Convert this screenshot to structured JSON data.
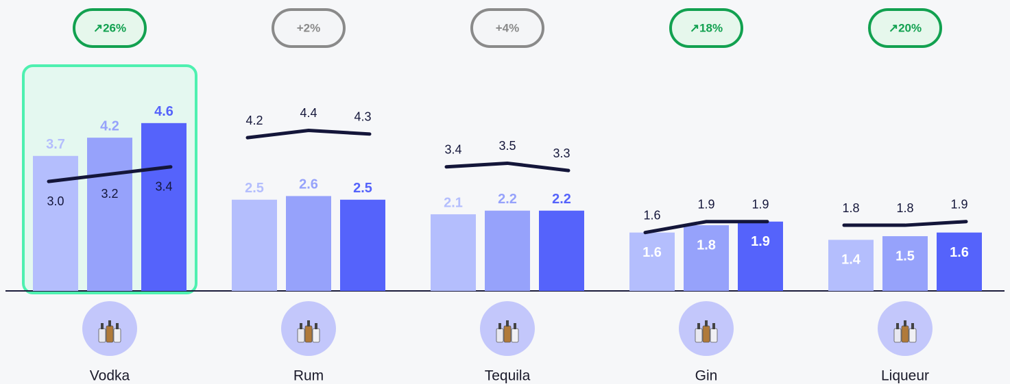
{
  "chart_data": {
    "type": "bar",
    "categories": [
      "Vodka",
      "Rum",
      "Tequila",
      "Gin",
      "Liqueur"
    ],
    "series": [
      {
        "color": "#b4befd",
        "values": [
          3.7,
          2.5,
          2.1,
          1.6,
          1.4
        ]
      },
      {
        "color": "#96a2fb",
        "values": [
          4.2,
          2.6,
          2.2,
          1.8,
          1.5
        ]
      },
      {
        "color": "#5563fb",
        "values": [
          4.6,
          2.5,
          2.2,
          1.9,
          1.6
        ]
      }
    ],
    "line_color": "#14163a",
    "line_series": [
      {
        "values": [
          3.0,
          4.2,
          3.4,
          1.6,
          1.8
        ],
        "value_labels": [
          "3.0",
          "4.2",
          "3.4",
          "1.6",
          "1.8"
        ]
      },
      {
        "values": [
          3.2,
          4.4,
          3.5,
          1.9,
          1.8
        ],
        "value_labels": [
          "3.2",
          "4.4",
          "3.5",
          "1.9",
          "1.8"
        ]
      },
      {
        "values": [
          3.4,
          4.3,
          3.3,
          1.9,
          1.9
        ],
        "value_labels": [
          "3.4",
          "4.3",
          "3.3",
          "1.9",
          "1.9"
        ]
      }
    ],
    "badges": [
      "↗26%",
      "+2%",
      "+4%",
      "↗18%",
      "↗20%"
    ],
    "badge_colors": [
      "#12a150",
      "#8a8a8a",
      "#8a8a8a",
      "#12a150",
      "#12a150"
    ],
    "highlight": "Vodka",
    "ylim": [
      0,
      8
    ]
  }
}
